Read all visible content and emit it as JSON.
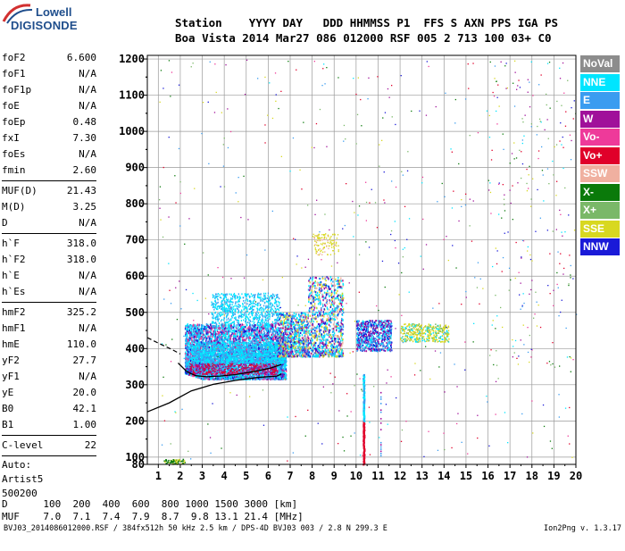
{
  "logo": {
    "line1": "Lowell",
    "line2": "DIGISONDE"
  },
  "header": {
    "labels": [
      "Station",
      "YYYY",
      "DAY",
      "DDD",
      "HHMMSS",
      "P1",
      "FFS",
      "S",
      "AXN",
      "PPS",
      "IGA",
      "PS"
    ],
    "values": [
      "Boa Vista",
      "2014",
      "Mar27",
      "086",
      "012000",
      "RSF",
      "005",
      "2",
      "713",
      "100",
      "03+",
      "C0"
    ]
  },
  "params": {
    "group1": [
      {
        "label": "foF2",
        "value": "6.600"
      },
      {
        "label": "foF1",
        "value": "N/A"
      },
      {
        "label": "foF1p",
        "value": "N/A"
      },
      {
        "label": "foE",
        "value": "N/A"
      },
      {
        "label": "foEp",
        "value": "0.48"
      },
      {
        "label": "fxI",
        "value": "7.30"
      },
      {
        "label": "foEs",
        "value": "N/A"
      },
      {
        "label": "fmin",
        "value": "2.60"
      }
    ],
    "group2": [
      {
        "label": "MUF(D)",
        "value": "21.43"
      },
      {
        "label": "M(D)",
        "value": "3.25"
      },
      {
        "label": "D",
        "value": "N/A"
      }
    ],
    "group3": [
      {
        "label": "h`F",
        "value": "318.0"
      },
      {
        "label": "h`F2",
        "value": "318.0"
      },
      {
        "label": "h`E",
        "value": "N/A"
      },
      {
        "label": "h`Es",
        "value": "N/A"
      }
    ],
    "group4": [
      {
        "label": "hmF2",
        "value": "325.2"
      },
      {
        "label": "hmF1",
        "value": "N/A"
      },
      {
        "label": "hmE",
        "value": "110.0"
      },
      {
        "label": "yF2",
        "value": "27.7"
      },
      {
        "label": "yF1",
        "value": "N/A"
      },
      {
        "label": "yE",
        "value": "20.0"
      },
      {
        "label": "B0",
        "value": "42.1"
      },
      {
        "label": "B1",
        "value": "1.00"
      }
    ],
    "clevel": {
      "label": "C-level",
      "value": "22"
    },
    "auto": [
      "Auto:",
      "Artist5",
      "500200"
    ]
  },
  "bottom_table": {
    "row1": "D      100  200  400  600  800 1000 1500 3000 [km]",
    "row2": "MUF    7.0  7.1  7.4  7.9  8.7  9.8 13.1 21.4 [MHz]"
  },
  "footer": {
    "left": "BVJ03_2014086012000.RSF / 384fx512h 50 kHz 2.5 km / DPS-4D BVJ03 003 / 2.8 N 299.3 E",
    "right": "Ion2Png v. 1.3.17"
  },
  "legend": [
    {
      "label": "NoVal",
      "color": "#8c8c8c"
    },
    {
      "label": "NNE",
      "color": "#00e5ff"
    },
    {
      "label": "E",
      "color": "#3a9cf0"
    },
    {
      "label": "W",
      "color": "#a0109a"
    },
    {
      "label": "Vo-",
      "color": "#ee3a9a"
    },
    {
      "label": "Vo+",
      "color": "#e0002a"
    },
    {
      "label": "SSW",
      "color": "#f0b0a0"
    },
    {
      "label": "X-",
      "color": "#0a7a0a"
    },
    {
      "label": "X+",
      "color": "#7ab868"
    },
    {
      "label": "SSE",
      "color": "#d8d820"
    },
    {
      "label": "NNW",
      "color": "#1a1ad8"
    }
  ],
  "chart_data": {
    "type": "scatter",
    "title": "",
    "xlabel": "",
    "ylabel": "",
    "xlim": [
      0.5,
      20
    ],
    "ylim": [
      80,
      1210
    ],
    "xticks": [
      1,
      2,
      3,
      4,
      5,
      6,
      7,
      8,
      9,
      10,
      11,
      12,
      13,
      14,
      15,
      16,
      17,
      18,
      19,
      20
    ],
    "yticks": [
      80,
      100,
      200,
      300,
      400,
      500,
      600,
      700,
      800,
      900,
      1000,
      1100,
      1200
    ],
    "grid": true,
    "legend_position": "right",
    "profile_curve": {
      "freq": [
        0.5,
        1.5,
        2.5,
        3.5,
        4.5,
        5.5,
        6.4,
        6.6
      ],
      "height": [
        225,
        250,
        283,
        301,
        312,
        320,
        324,
        330
      ]
    },
    "trace_curve": {
      "freq": [
        1.9,
        2.3,
        2.7,
        3.2,
        3.8,
        4.5,
        5.3,
        6.1,
        6.6
      ],
      "height": [
        360,
        336,
        325,
        322,
        324,
        328,
        336,
        346,
        356
      ]
    },
    "dashed_segment": {
      "freq": [
        0.5,
        1.0,
        1.6,
        2.0
      ],
      "height": [
        430,
        415,
        398,
        385
      ]
    },
    "echo_regions": [
      {
        "name": "O-trace band",
        "freq_range": [
          2.2,
          6.8
        ],
        "height_range": [
          310,
          470
        ]
      },
      {
        "name": "O-trace upper",
        "freq_range": [
          3.4,
          6.5
        ],
        "height_range": [
          480,
          555
        ]
      },
      {
        "name": "spread F",
        "freq_range": [
          6.5,
          9.4
        ],
        "height_range": [
          380,
          600
        ]
      },
      {
        "name": "spread F upper",
        "freq_range": [
          8.0,
          9.2
        ],
        "height_range": [
          660,
          720
        ]
      },
      {
        "name": "spread cluster",
        "freq_range": [
          10.0,
          11.6
        ],
        "height_range": [
          400,
          480
        ]
      },
      {
        "name": "SSE cluster",
        "freq_range": [
          12.0,
          14.2
        ],
        "height_range": [
          420,
          470
        ]
      },
      {
        "name": "spike",
        "freq_range": [
          10.2,
          10.5
        ],
        "height_range": [
          80,
          330
        ]
      }
    ]
  }
}
